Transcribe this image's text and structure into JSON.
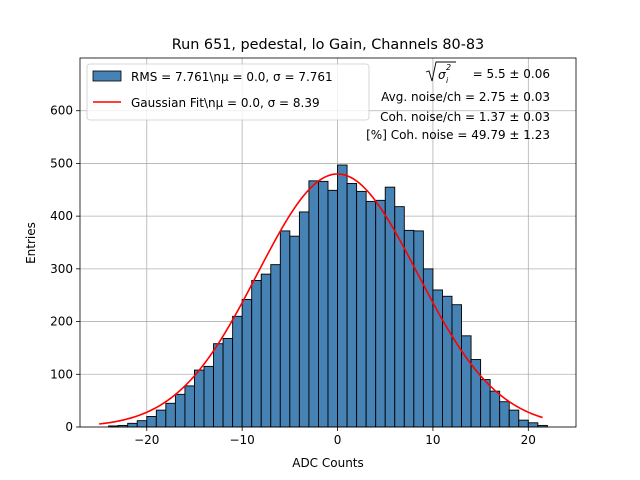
{
  "chart_data": {
    "type": "bar",
    "title": "Run 651, pedestal, lo Gain, Channels 80-83",
    "xlabel": "ADC Counts",
    "ylabel": "Entries",
    "xlim": [
      -27,
      25
    ],
    "ylim": [
      0,
      700
    ],
    "grid": true,
    "x_ticks": [
      -20,
      -10,
      0,
      10,
      20
    ],
    "y_ticks": [
      0,
      100,
      200,
      300,
      400,
      500,
      600
    ],
    "x_tick_labels": [
      "−20",
      "−10",
      "0",
      "10",
      "20"
    ],
    "y_tick_labels": [
      "0",
      "100",
      "200",
      "300",
      "400",
      "500",
      "600"
    ],
    "legend_position": "top-left",
    "series": [
      {
        "name": "histogram",
        "kind": "histogram",
        "color": "#4682b4",
        "edge_color": "#000000",
        "legend_text": "RMS = 7.761\\nμ = 0.0, σ = 7.761",
        "legend_text_prefix": "RMS = 7.761\\n",
        "legend_text_mu": "μ = 0.0, ",
        "legend_text_sigma": "σ = 7.761",
        "bin_width": 1,
        "bin_start": -24,
        "values": [
          2,
          3,
          7,
          12,
          20,
          32,
          45,
          62,
          78,
          108,
          115,
          158,
          168,
          210,
          242,
          278,
          290,
          308,
          372,
          362,
          408,
          467,
          466,
          449,
          497,
          462,
          447,
          428,
          430,
          455,
          418,
          373,
          372,
          300,
          260,
          248,
          232,
          173,
          128,
          90,
          68,
          48,
          32,
          13,
          8,
          3
        ]
      },
      {
        "name": "Gaussian Fit",
        "kind": "line",
        "color": "#ff0000",
        "legend_text": "Gaussian Fit\\nμ = 0.0, σ = 8.39",
        "legend_text_prefix": "Gaussian Fit\\n",
        "legend_text_mu": "μ = 0.0, ",
        "legend_text_sigma": "σ = 8.39",
        "mu": 0.0,
        "sigma": 8.39,
        "amplitude": 480,
        "x_range": [
          -25,
          21.5
        ]
      }
    ],
    "annotations": {
      "sigma_line": "= 5.5 ± 0.06",
      "avg_noise": "Avg. noise/ch = 2.75 ± 0.03",
      "coh_noise": "Coh. noise/ch = 1.37 ± 0.03",
      "pct_coh_noise": "[%] Coh. noise = 49.79 ± 1.23"
    }
  }
}
